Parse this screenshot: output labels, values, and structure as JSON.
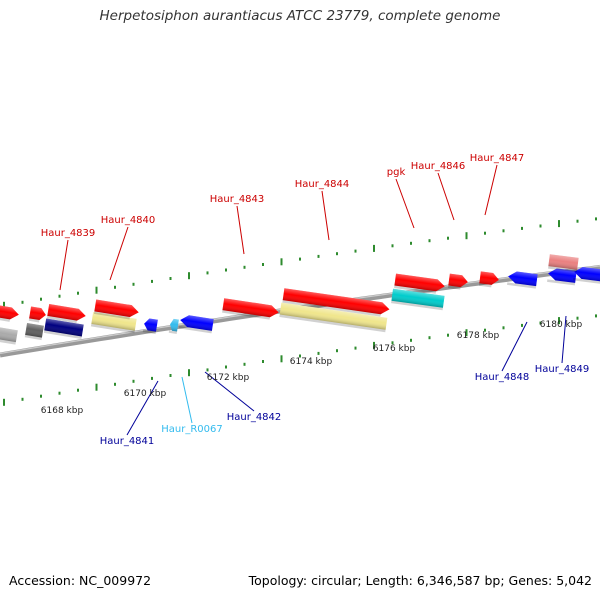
{
  "title": "Herpetosiphon aurantiacus ATCC 23779, complete genome",
  "footer": {
    "accession": "Accession: NC_009972",
    "summary": "Topology: circular; Length: 6,346,587 bp; Genes: 5,042"
  },
  "colors": {
    "backbone": "#999999",
    "tick": "#2e8b2e",
    "cds": "#ff0000",
    "cds_pale": "#f0e68c",
    "cds_light_red": "#ea8080",
    "cds_cyan": "#00cccc",
    "cds_blue": "#0000ff",
    "cds_navy": "#000080",
    "cds_grey": "#aaaaaa",
    "cds_dark_grey": "#606060",
    "ncrna_cyan": "#33bbee",
    "top_label": "#cc0000",
    "bottom_label": "#000099",
    "rna_label": "#33bbee"
  },
  "scale_labels": [
    "6168 kbp",
    "6170 kbp",
    "6172 kbp",
    "6174 kbp",
    "6176 kbp",
    "6178 kbp",
    "6180 kbp"
  ],
  "top_labels": [
    "Haur_4839",
    "Haur_4840",
    "Haur_4843",
    "Haur_4844",
    "pgk",
    "Haur_4846",
    "Haur_4847"
  ],
  "bottom_labels": [
    "Haur_4841",
    "Haur_R0067",
    "Haur_4842",
    "Haur_4848",
    "Haur_4849"
  ]
}
